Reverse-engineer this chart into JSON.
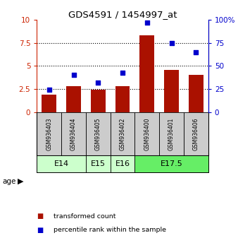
{
  "title": "GDS4591 / 1454997_at",
  "samples": [
    "GSM936403",
    "GSM936404",
    "GSM936405",
    "GSM936402",
    "GSM936400",
    "GSM936401",
    "GSM936406"
  ],
  "transformed_count": [
    1.9,
    2.8,
    2.45,
    2.8,
    8.3,
    4.6,
    4.0
  ],
  "percentile_rank": [
    24,
    40,
    32,
    43,
    97,
    75,
    65
  ],
  "age_groups": [
    {
      "label": "E14",
      "span": [
        0,
        1
      ],
      "color": "#ccffcc"
    },
    {
      "label": "E15",
      "span": [
        2,
        2
      ],
      "color": "#ccffcc"
    },
    {
      "label": "E16",
      "span": [
        3,
        3
      ],
      "color": "#ccffcc"
    },
    {
      "label": "E17.5",
      "span": [
        4,
        6
      ],
      "color": "#66ee66"
    }
  ],
  "bar_color": "#aa1100",
  "dot_color": "#0000cc",
  "left_ylim": [
    0,
    10
  ],
  "right_ylim": [
    0,
    100
  ],
  "left_yticks": [
    0,
    2.5,
    5,
    7.5,
    10
  ],
  "right_yticks": [
    0,
    25,
    50,
    75,
    100
  ],
  "right_yticklabels": [
    "0",
    "25",
    "50",
    "75",
    "100%"
  ],
  "left_color": "#cc2200",
  "right_color": "#0000cc",
  "sample_bg_color": "#cccccc",
  "grid_yticks": [
    2.5,
    5,
    7.5
  ]
}
